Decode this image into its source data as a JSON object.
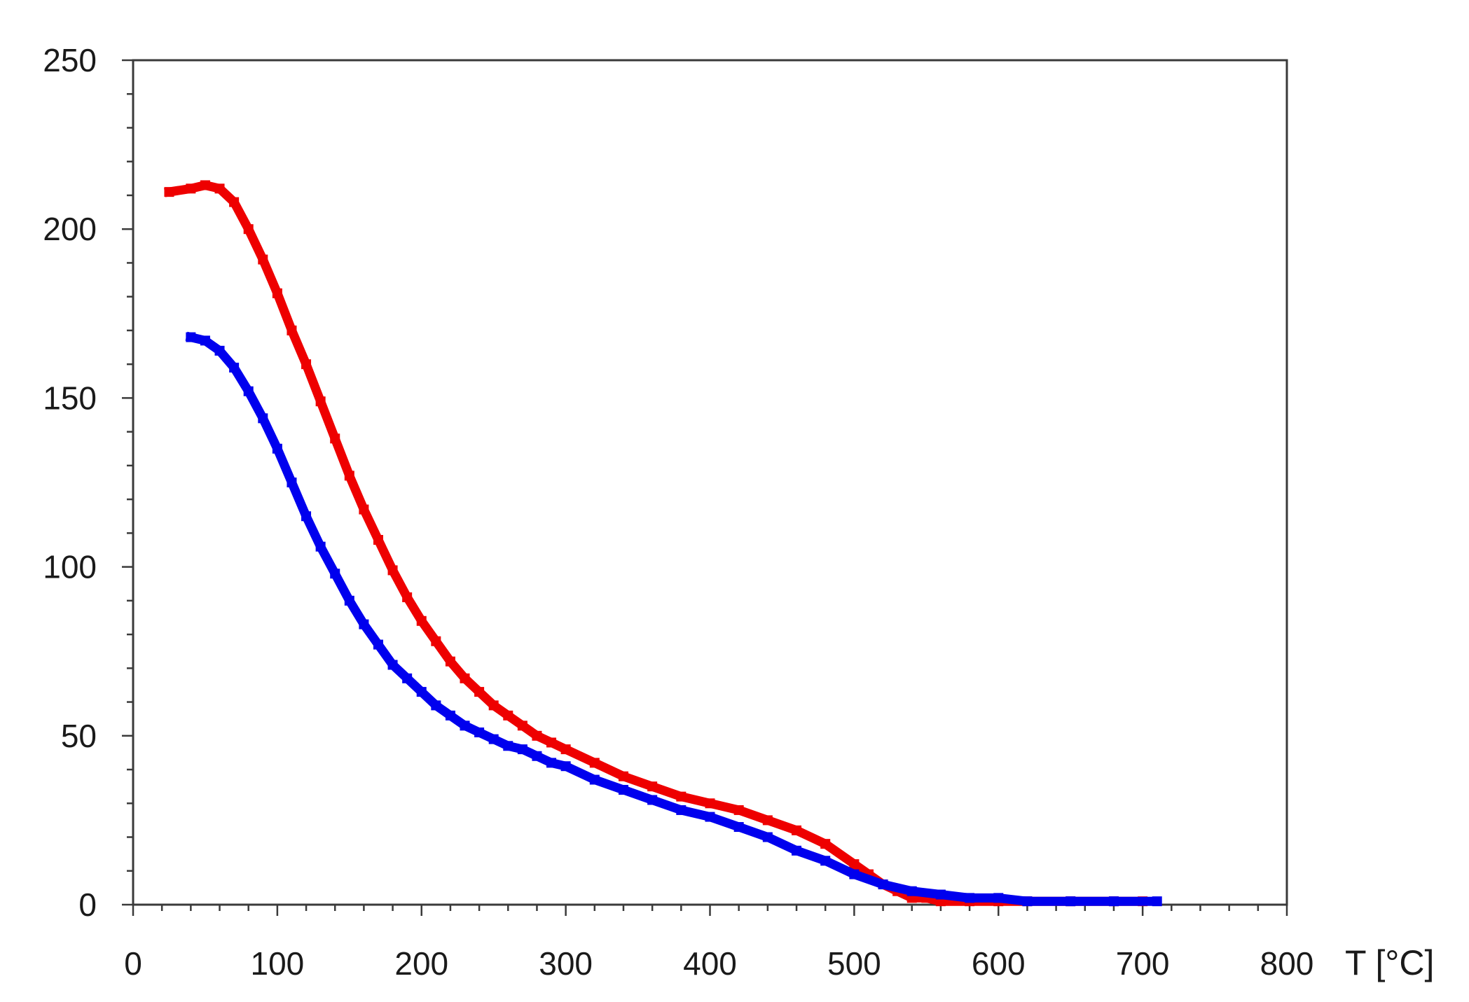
{
  "chart_data": {
    "type": "line",
    "title": "",
    "xlabel": "T [°C]",
    "ylabel": "",
    "xlim": [
      0,
      800
    ],
    "ylim": [
      0,
      250
    ],
    "x_ticks": [
      0,
      100,
      200,
      300,
      400,
      500,
      600,
      700,
      800
    ],
    "y_ticks": [
      0,
      50,
      100,
      150,
      200,
      250
    ],
    "grid": false,
    "legend": "none",
    "series": [
      {
        "color": "#ee0000",
        "x": [
          25,
          40,
          50,
          60,
          70,
          80,
          90,
          100,
          110,
          120,
          130,
          140,
          150,
          160,
          170,
          180,
          190,
          200,
          210,
          220,
          230,
          240,
          250,
          260,
          270,
          280,
          290,
          300,
          320,
          340,
          360,
          380,
          400,
          420,
          440,
          460,
          480,
          500,
          510,
          520,
          530,
          540,
          550,
          560,
          580,
          600,
          620,
          650,
          680,
          700
        ],
        "y": [
          211,
          212,
          213,
          212,
          208,
          200,
          191,
          181,
          170,
          160,
          149,
          138,
          127,
          117,
          108,
          99,
          91,
          84,
          78,
          72,
          67,
          63,
          59,
          56,
          53,
          50,
          48,
          46,
          42,
          38,
          35,
          32,
          30,
          28,
          25,
          22,
          18,
          12,
          9,
          6,
          4,
          2,
          2,
          1,
          1,
          1,
          1,
          1,
          1,
          1
        ]
      },
      {
        "color": "#0000ee",
        "x": [
          40,
          50,
          60,
          70,
          80,
          90,
          100,
          110,
          120,
          130,
          140,
          150,
          160,
          170,
          180,
          190,
          200,
          210,
          220,
          230,
          240,
          250,
          260,
          270,
          280,
          290,
          300,
          320,
          340,
          360,
          380,
          400,
          420,
          440,
          460,
          480,
          500,
          520,
          540,
          560,
          580,
          600,
          620,
          650,
          680,
          710
        ],
        "y": [
          168,
          167,
          164,
          159,
          152,
          144,
          135,
          125,
          115,
          106,
          98,
          90,
          83,
          77,
          71,
          67,
          63,
          59,
          56,
          53,
          51,
          49,
          47,
          46,
          44,
          42,
          41,
          37,
          34,
          31,
          28,
          26,
          23,
          20,
          16,
          13,
          9,
          6,
          4,
          3,
          2,
          2,
          1,
          1,
          1,
          1
        ]
      }
    ]
  }
}
